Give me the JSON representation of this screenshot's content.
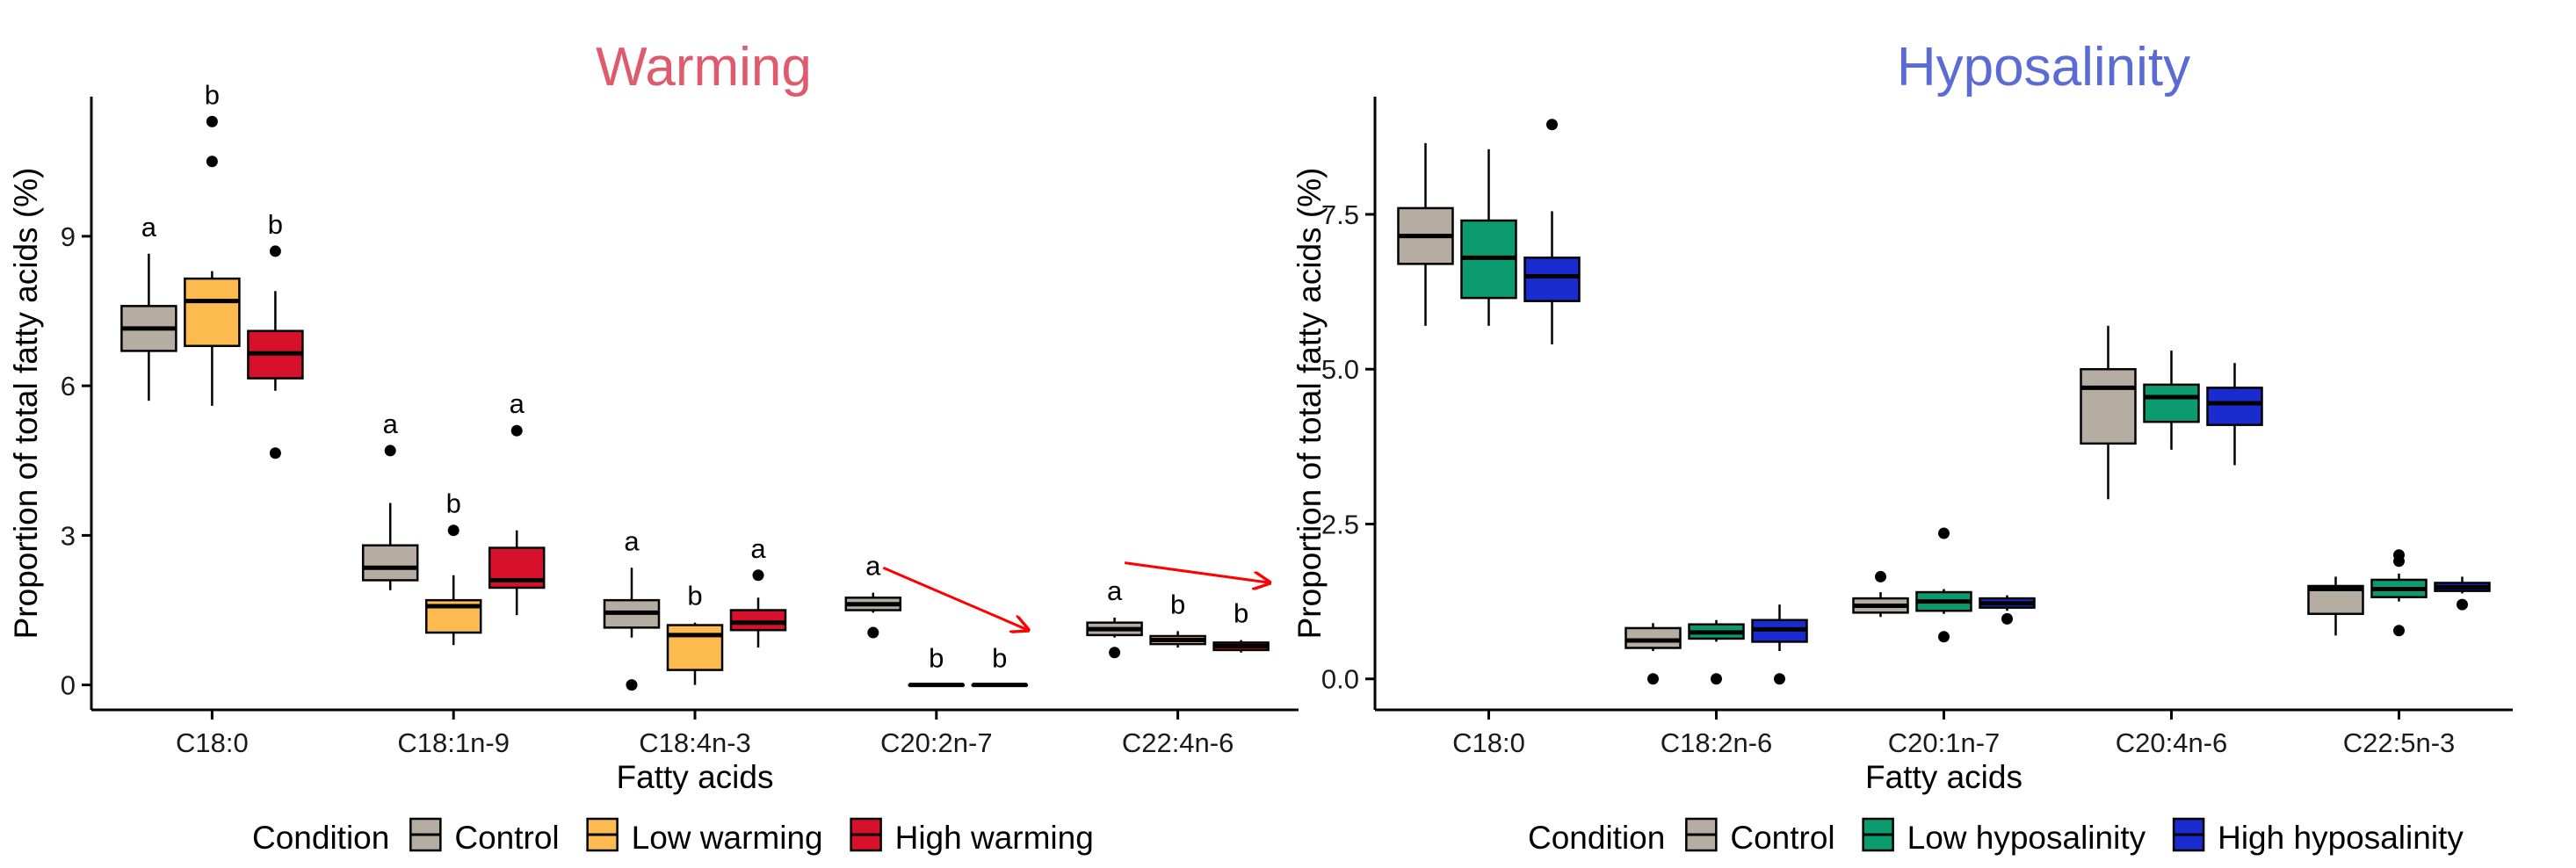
{
  "chart_data": [
    {
      "type": "box",
      "title": "Warming",
      "title_color": "#e05a6d",
      "xlabel": "Fatty acids",
      "ylabel": "Proportion of total fatty acids (%)",
      "ylim": [
        -0.5,
        11.8
      ],
      "y_ticks": [
        0,
        3,
        6,
        9
      ],
      "y_tick_labels": [
        "0",
        "3",
        "6",
        "9"
      ],
      "categories": [
        "C18:0",
        "C18:1n-9",
        "C18:4n-3",
        "C20:2n-7",
        "C22:4n-6"
      ],
      "legend": {
        "title": "Condition",
        "items": [
          "Control",
          "Low warming",
          "High warming"
        ],
        "colors": [
          "#b5aca2",
          "#fdbb4f",
          "#d7102c"
        ]
      },
      "series": [
        {
          "name": "Control",
          "boxes": [
            {
              "min": 5.7,
              "q1": 6.7,
              "median": 7.15,
              "q3": 7.6,
              "max": 8.65,
              "outliers": [],
              "letter": "a"
            },
            {
              "min": 1.9,
              "q1": 2.1,
              "median": 2.35,
              "q3": 2.8,
              "max": 3.65,
              "outliers": [
                4.7
              ],
              "letter": "a"
            },
            {
              "min": 0.95,
              "q1": 1.15,
              "median": 1.45,
              "q3": 1.7,
              "max": 2.35,
              "outliers": [
                0.0
              ],
              "letter": "a"
            },
            {
              "min": 1.45,
              "q1": 1.5,
              "median": 1.62,
              "q3": 1.75,
              "max": 1.85,
              "outliers": [
                1.05
              ],
              "letter": "a"
            },
            {
              "min": 0.95,
              "q1": 1.0,
              "median": 1.12,
              "q3": 1.25,
              "max": 1.35,
              "outliers": [
                0.65
              ],
              "letter": "a"
            }
          ]
        },
        {
          "name": "Low warming",
          "boxes": [
            {
              "min": 5.6,
              "q1": 6.8,
              "median": 7.7,
              "q3": 8.15,
              "max": 8.3,
              "outliers": [
                10.5,
                11.3
              ],
              "letter": "b"
            },
            {
              "min": 0.8,
              "q1": 1.05,
              "median": 1.58,
              "q3": 1.7,
              "max": 2.2,
              "outliers": [
                3.1
              ],
              "letter": "b"
            },
            {
              "min": 0.0,
              "q1": 0.3,
              "median": 1.0,
              "q3": 1.2,
              "max": 1.25,
              "outliers": [],
              "letter": "b"
            },
            {
              "min": 0.0,
              "q1": 0.0,
              "median": 0.0,
              "q3": 0.0,
              "max": 0.0,
              "outliers": [],
              "letter": "b"
            },
            {
              "min": 0.75,
              "q1": 0.82,
              "median": 0.9,
              "q3": 0.98,
              "max": 1.08,
              "outliers": [],
              "letter": "b"
            }
          ]
        },
        {
          "name": "High warming",
          "boxes": [
            {
              "min": 5.9,
              "q1": 6.15,
              "median": 6.65,
              "q3": 7.1,
              "max": 7.9,
              "outliers": [
                8.7,
                4.65
              ],
              "letter": "b"
            },
            {
              "min": 1.4,
              "q1": 1.95,
              "median": 2.1,
              "q3": 2.75,
              "max": 3.1,
              "outliers": [
                5.1
              ],
              "letter": "a"
            },
            {
              "min": 0.75,
              "q1": 1.1,
              "median": 1.25,
              "q3": 1.5,
              "max": 1.75,
              "outliers": [
                2.2
              ],
              "letter": "a"
            },
            {
              "min": 0.0,
              "q1": 0.0,
              "median": 0.0,
              "q3": 0.0,
              "max": 0.0,
              "outliers": [],
              "letter": "b"
            },
            {
              "min": 0.65,
              "q1": 0.7,
              "median": 0.78,
              "q3": 0.85,
              "max": 0.9,
              "outliers": [],
              "letter": "b"
            }
          ]
        }
      ],
      "annotations": [
        {
          "type": "arrow",
          "color": "#ff0000",
          "from": [
            3.78,
            2.35
          ],
          "to": [
            4.38,
            1.1
          ]
        },
        {
          "type": "arrow",
          "color": "#ff0000",
          "from": [
            4.78,
            2.45
          ],
          "to": [
            5.38,
            2.05
          ]
        }
      ]
    },
    {
      "type": "box",
      "title": "Hyposalinity",
      "title_color": "#5b6bd6",
      "xlabel": "Fatty acids",
      "ylabel": "Proportion of total fatty acids (%)",
      "ylim": [
        -0.5,
        9.4
      ],
      "y_ticks": [
        0,
        2.5,
        5,
        7.5
      ],
      "y_tick_labels": [
        "0.0",
        "2.5",
        "5.0",
        "7.5"
      ],
      "categories": [
        "C18:0",
        "C18:2n-6",
        "C20:1n-7",
        "C20:4n-6",
        "C22:5n-3"
      ],
      "legend": {
        "title": "Condition",
        "items": [
          "Control",
          "Low hyposalinity",
          "High hyposalinity"
        ],
        "colors": [
          "#b5aca2",
          "#0c9b6e",
          "#1a2cd0"
        ]
      },
      "series": [
        {
          "name": "Control",
          "boxes": [
            {
              "min": 5.7,
              "q1": 6.7,
              "median": 7.15,
              "q3": 7.6,
              "max": 8.65,
              "outliers": []
            },
            {
              "min": 0.45,
              "q1": 0.5,
              "median": 0.62,
              "q3": 0.82,
              "max": 0.9,
              "outliers": [
                0.0
              ]
            },
            {
              "min": 1.0,
              "q1": 1.07,
              "median": 1.18,
              "q3": 1.3,
              "max": 1.4,
              "outliers": [
                1.65
              ]
            },
            {
              "min": 2.9,
              "q1": 3.8,
              "median": 4.7,
              "q3": 5.0,
              "max": 5.7,
              "outliers": []
            },
            {
              "min": 0.7,
              "q1": 1.05,
              "median": 1.45,
              "q3": 1.5,
              "max": 1.65,
              "outliers": []
            }
          ]
        },
        {
          "name": "Low hyposalinity",
          "boxes": [
            {
              "min": 5.7,
              "q1": 6.15,
              "median": 6.8,
              "q3": 7.4,
              "max": 8.55,
              "outliers": []
            },
            {
              "min": 0.6,
              "q1": 0.65,
              "median": 0.75,
              "q3": 0.88,
              "max": 0.95,
              "outliers": [
                0.0
              ]
            },
            {
              "min": 1.05,
              "q1": 1.1,
              "median": 1.25,
              "q3": 1.4,
              "max": 1.45,
              "outliers": [
                2.35,
                0.68
              ]
            },
            {
              "min": 3.7,
              "q1": 4.15,
              "median": 4.55,
              "q3": 4.75,
              "max": 5.3,
              "outliers": []
            },
            {
              "min": 1.25,
              "q1": 1.32,
              "median": 1.45,
              "q3": 1.6,
              "max": 1.7,
              "outliers": [
                2.0,
                1.9,
                0.78
              ]
            }
          ]
        },
        {
          "name": "High hyposalinity",
          "boxes": [
            {
              "min": 5.4,
              "q1": 6.1,
              "median": 6.5,
              "q3": 6.8,
              "max": 7.55,
              "outliers": [
                8.95
              ]
            },
            {
              "min": 0.45,
              "q1": 0.6,
              "median": 0.8,
              "q3": 0.95,
              "max": 1.2,
              "outliers": [
                0.0
              ]
            },
            {
              "min": 1.1,
              "q1": 1.15,
              "median": 1.22,
              "q3": 1.3,
              "max": 1.35,
              "outliers": [
                0.97
              ]
            },
            {
              "min": 3.45,
              "q1": 4.1,
              "median": 4.45,
              "q3": 4.7,
              "max": 5.1,
              "outliers": []
            },
            {
              "min": 1.38,
              "q1": 1.42,
              "median": 1.48,
              "q3": 1.55,
              "max": 1.65,
              "outliers": [
                1.2
              ]
            }
          ]
        }
      ]
    }
  ]
}
